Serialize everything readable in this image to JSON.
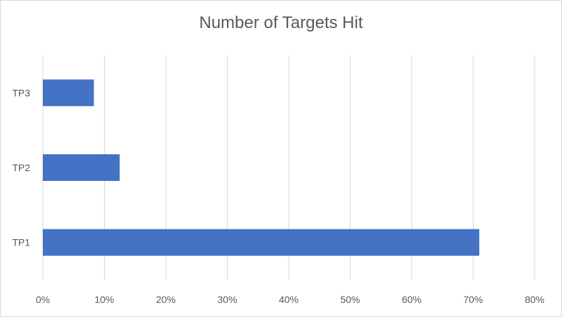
{
  "chart_data": {
    "type": "bar",
    "orientation": "horizontal",
    "title": "Number of Targets Hit",
    "xlabel": "",
    "ylabel": "",
    "categories": [
      "TP1",
      "TP2",
      "TP3"
    ],
    "values": [
      71,
      12.5,
      8.3
    ],
    "value_unit": "percent",
    "xlim": [
      0,
      80
    ],
    "x_ticks": [
      "0%",
      "10%",
      "20%",
      "30%",
      "40%",
      "50%",
      "60%",
      "70%",
      "80%"
    ],
    "grid": "vertical",
    "legend": "none",
    "bar_color": "#4472c4",
    "grid_color": "#d9d9d9"
  }
}
